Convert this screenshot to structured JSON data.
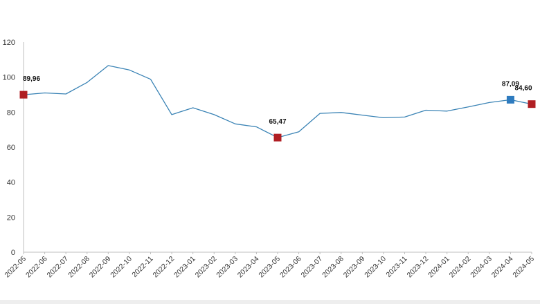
{
  "chart_data": {
    "type": "line",
    "title": "",
    "xlabel": "",
    "ylabel": "",
    "ylim": [
      0,
      120
    ],
    "yticks": [
      0,
      20,
      40,
      60,
      80,
      100,
      120
    ],
    "grid": false,
    "legend": "none",
    "colors": {
      "line": "#3a83b5",
      "highlight_red": "#b01e23",
      "highlight_blue": "#2e7bbf",
      "axis": "#bfbfbf"
    },
    "categories": [
      "2022-05",
      "2022-06",
      "2022-07",
      "2022-08",
      "2022-09",
      "2022-10",
      "2022-11",
      "2022-12",
      "2023-01",
      "2023-02",
      "2023-03",
      "2023-04",
      "2023-05",
      "2023-06",
      "2023-07",
      "2023-08",
      "2023-09",
      "2023-10",
      "2023-11",
      "2023-12",
      "2024-01",
      "2024-02",
      "2024-03",
      "2024-04",
      "2024-05"
    ],
    "series": [
      {
        "values": [
          89.96,
          91.0,
          90.4,
          97.0,
          106.6,
          104.1,
          98.8,
          78.6,
          82.5,
          78.6,
          73.3,
          71.6,
          65.47,
          68.8,
          79.3,
          79.8,
          78.3,
          76.8,
          77.2,
          81.1,
          80.6,
          83.0,
          85.5,
          87.09,
          84.6
        ],
        "highlights": [
          {
            "index": 0,
            "label": "89,96",
            "color": "highlight_red"
          },
          {
            "index": 12,
            "label": "65,47",
            "color": "highlight_red"
          },
          {
            "index": 23,
            "label": "87,09",
            "color": "highlight_blue"
          },
          {
            "index": 24,
            "label": "84,60",
            "color": "highlight_red"
          }
        ]
      }
    ]
  }
}
